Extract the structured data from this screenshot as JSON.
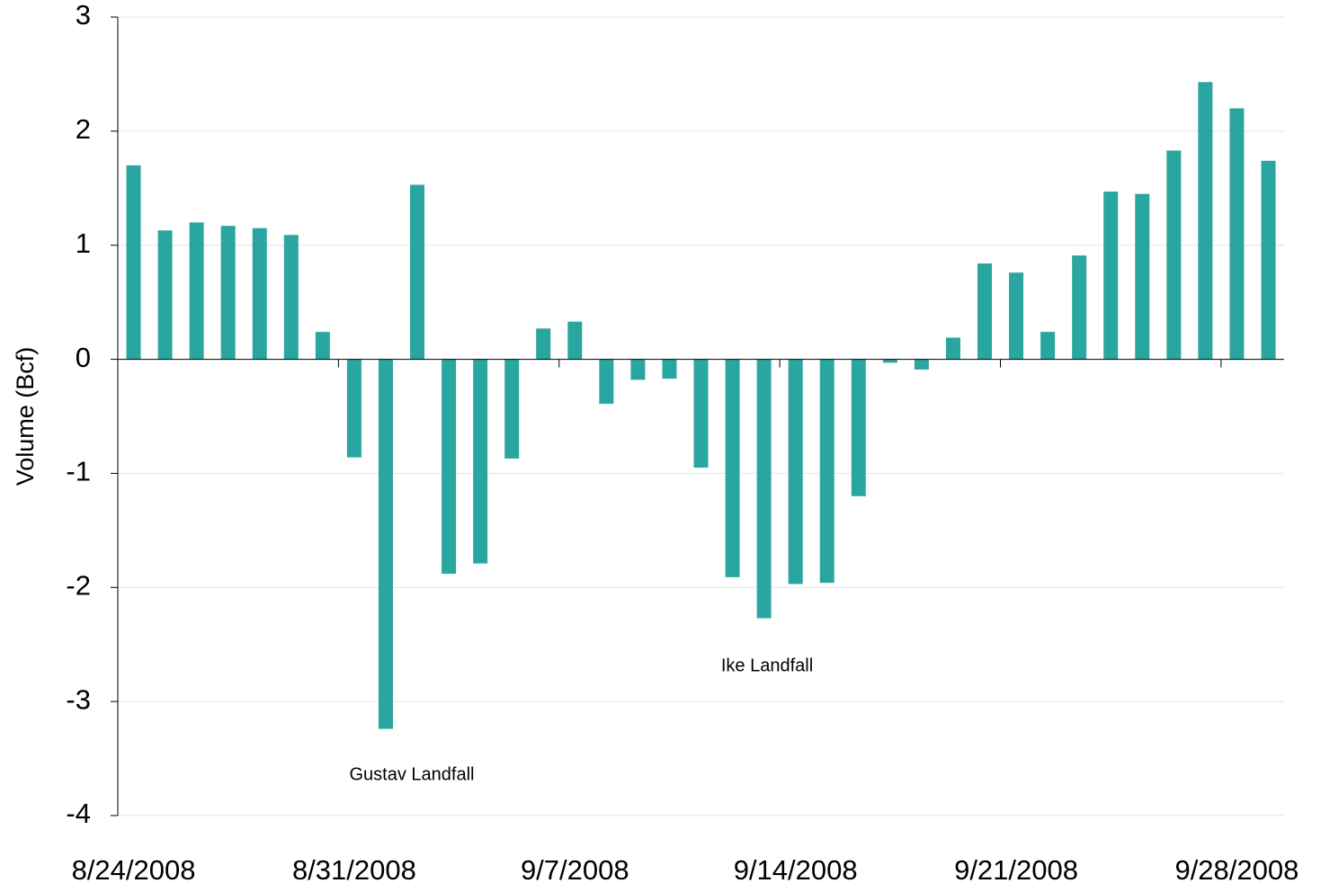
{
  "chart_data": {
    "type": "bar",
    "y_label": "Volume (Bcf)",
    "categories": [
      "8/24/2008",
      null,
      null,
      null,
      null,
      null,
      null,
      "8/31/2008",
      null,
      null,
      null,
      null,
      null,
      null,
      "9/7/2008",
      null,
      null,
      null,
      null,
      null,
      null,
      "9/14/2008",
      null,
      null,
      null,
      null,
      null,
      null,
      "9/21/2008",
      null,
      null,
      null,
      null,
      null,
      null,
      "9/28/2008",
      null
    ],
    "values": [
      1.7,
      1.13,
      1.2,
      1.17,
      1.15,
      1.09,
      0.24,
      -0.86,
      -3.24,
      1.53,
      -1.88,
      -1.79,
      -0.87,
      0.27,
      0.33,
      -0.39,
      -0.18,
      -0.17,
      -0.95,
      -1.91,
      -2.27,
      -1.97,
      -1.96,
      -1.2,
      -0.03,
      -0.09,
      0.19,
      0.84,
      0.76,
      0.24,
      0.91,
      1.47,
      1.45,
      1.83,
      2.43,
      2.2,
      1.74
    ],
    "color": "#2aa6a0",
    "ylim": [
      -4,
      3
    ],
    "yticks": [
      -4,
      -3,
      -2,
      -1,
      0,
      1,
      2,
      3
    ],
    "grid": true,
    "annotations": [
      "Gustav Landfall",
      "Ike Landfall"
    ]
  }
}
